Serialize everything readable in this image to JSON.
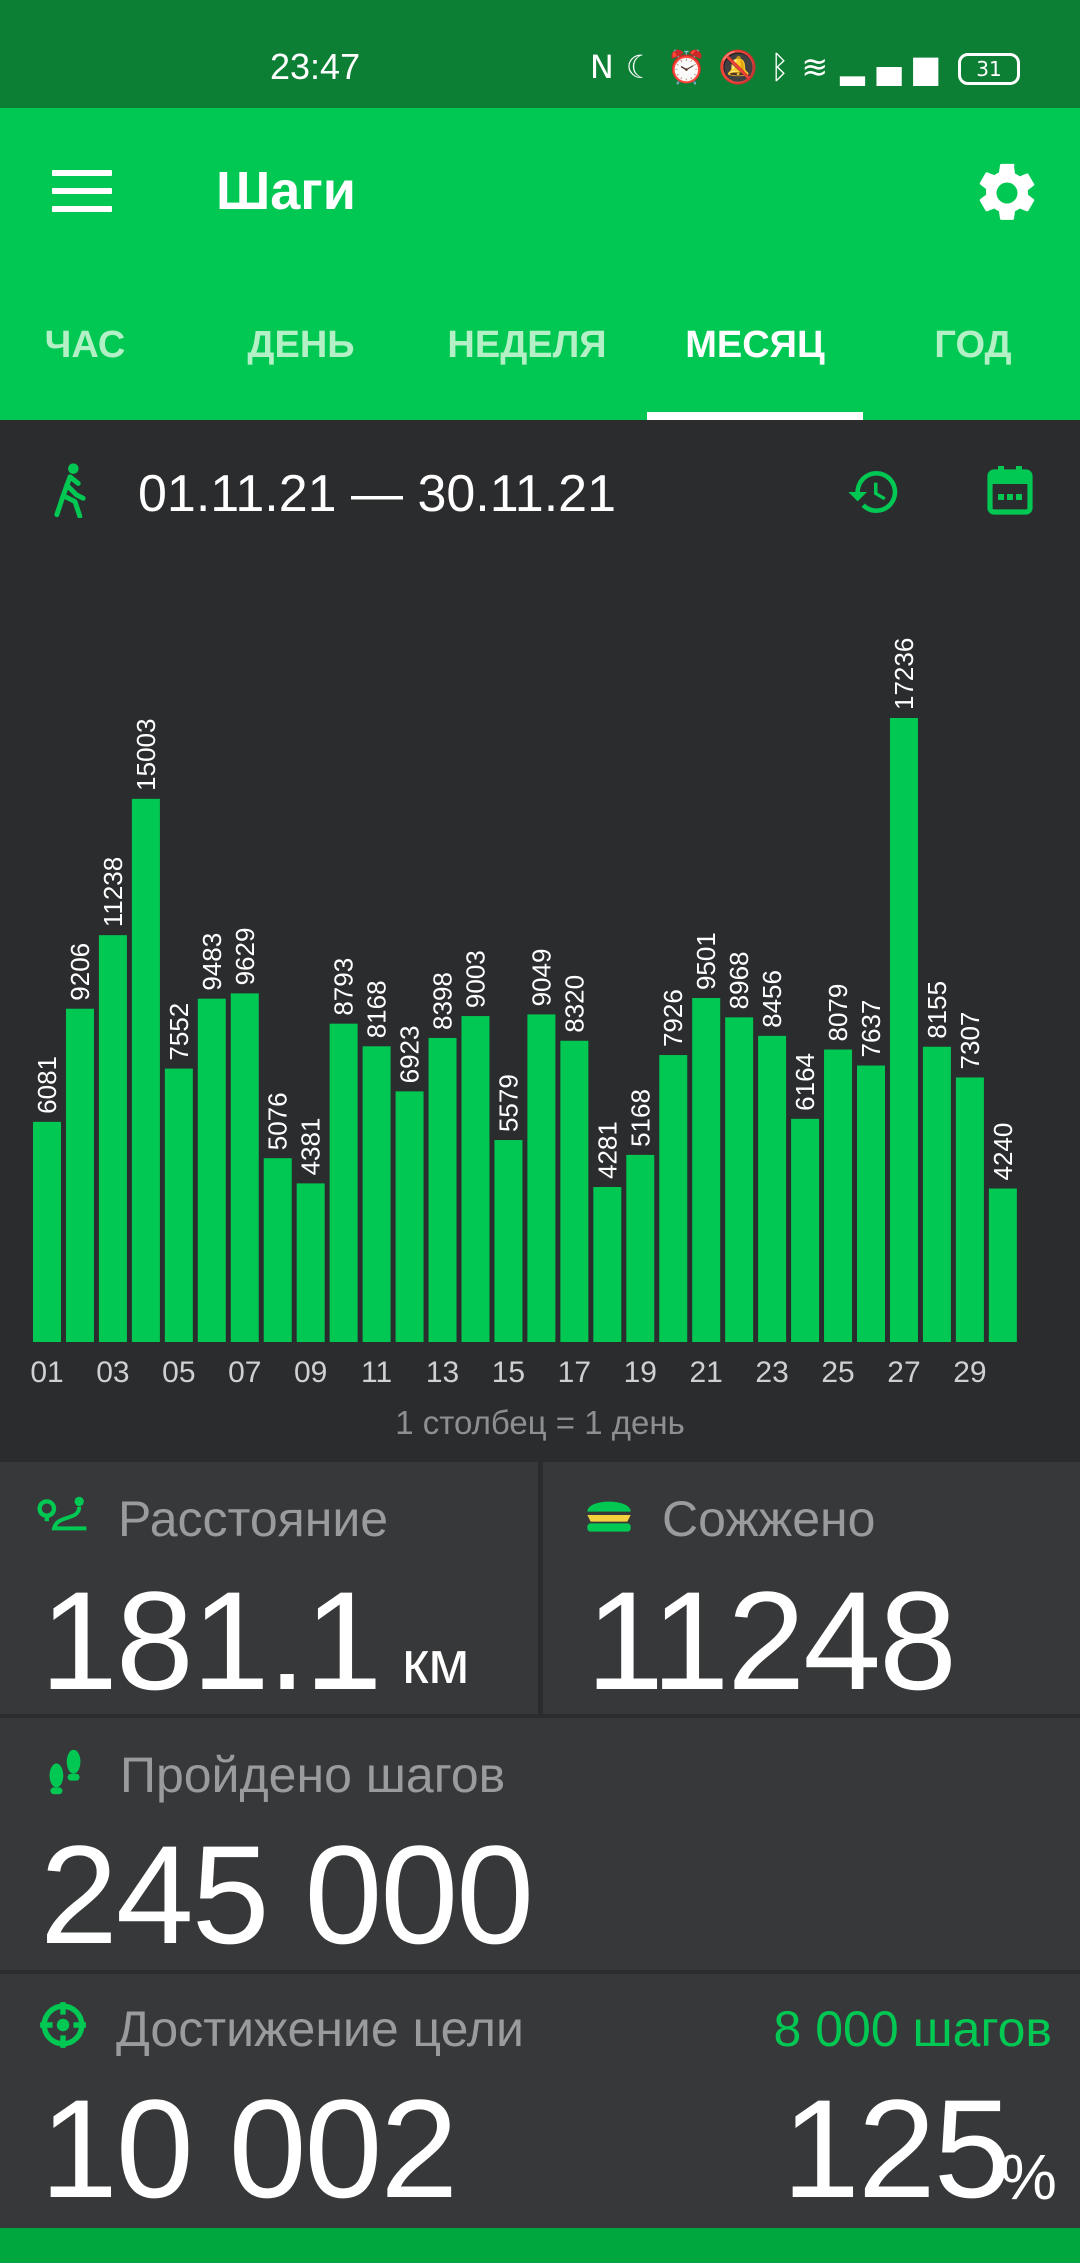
{
  "status": {
    "time": "23:47",
    "battery": "31"
  },
  "app": {
    "title": "Шаги"
  },
  "tabs": [
    {
      "label": "ЧАС"
    },
    {
      "label": "ДЕНЬ"
    },
    {
      "label": "НЕДЕЛЯ"
    },
    {
      "label": "МЕСЯЦ"
    },
    {
      "label": "ГОД"
    }
  ],
  "active_tab": "МЕСЯЦ",
  "range": {
    "text": "01.11.21 — 30.11.21"
  },
  "chart_note": "1 столбец = 1 день",
  "chart_data": {
    "type": "bar",
    "categories": [
      "01",
      "02",
      "03",
      "04",
      "05",
      "06",
      "07",
      "08",
      "09",
      "10",
      "11",
      "12",
      "13",
      "14",
      "15",
      "16",
      "17",
      "18",
      "19",
      "20",
      "21",
      "22",
      "23",
      "24",
      "25",
      "26",
      "27",
      "28",
      "29",
      "30"
    ],
    "tick_labels": [
      "01",
      "03",
      "05",
      "07",
      "09",
      "11",
      "13",
      "15",
      "17",
      "19",
      "21",
      "23",
      "25",
      "27",
      "29"
    ],
    "values": [
      6081,
      9206,
      11238,
      15003,
      7552,
      9483,
      9629,
      5076,
      4381,
      8793,
      8168,
      6923,
      8398,
      9003,
      5579,
      9049,
      8320,
      4281,
      5168,
      7926,
      9501,
      8968,
      8456,
      6164,
      8079,
      7637,
      17236,
      8155,
      7307,
      4240
    ],
    "ylim": [
      0,
      17236
    ],
    "bar_color": "#00c853"
  },
  "stats": {
    "distance": {
      "label": "Расстояние",
      "value": "181.1",
      "unit": "км"
    },
    "burned": {
      "label": "Сожжено",
      "value": "11248"
    },
    "steps": {
      "label": "Пройдено шагов",
      "value": "245 000"
    },
    "goal": {
      "label": "Достижение цели",
      "value": "10 002",
      "target": "8 000 шагов",
      "percent": "125",
      "percent_sign": "%"
    }
  },
  "colors": {
    "accent": "#00c853",
    "statusbar": "#0d7f34",
    "background": "#2b2c2e",
    "card": "#373839"
  }
}
